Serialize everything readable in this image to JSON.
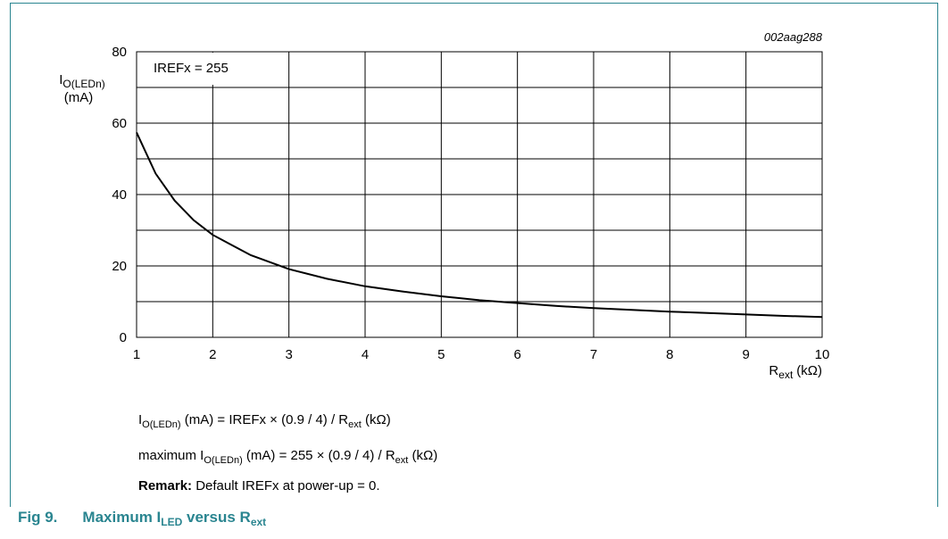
{
  "chart_data": {
    "type": "line",
    "figure_id": "002aag288",
    "annotation": "IREFx = 255",
    "ylabel_main": "I",
    "ylabel_sub": "O(LEDn)",
    "ylabel_unit": "(mA)",
    "xlabel_main": "R",
    "xlabel_sub": "ext",
    "xlabel_unit": "(kΩ)",
    "xlim": [
      1,
      10
    ],
    "ylim": [
      0,
      80
    ],
    "x_ticks": [
      "1",
      "2",
      "3",
      "4",
      "5",
      "6",
      "7",
      "8",
      "9",
      "10"
    ],
    "y_ticks": [
      "0",
      "20",
      "40",
      "60",
      "80"
    ],
    "grid": true,
    "series": [
      {
        "x": [
          1,
          1.25,
          1.5,
          1.75,
          2,
          2.5,
          3,
          3.5,
          4,
          4.5,
          5,
          5.5,
          6,
          6.5,
          7,
          7.5,
          8,
          8.5,
          9,
          9.5,
          10
        ],
        "y": [
          57.4,
          45.9,
          38.3,
          32.8,
          28.7,
          23.0,
          19.1,
          16.4,
          14.3,
          12.8,
          11.5,
          10.4,
          9.6,
          8.8,
          8.2,
          7.7,
          7.2,
          6.8,
          6.4,
          6.0,
          5.7
        ]
      }
    ]
  },
  "notes": {
    "formula1": {
      "a": "I",
      "b": "O(LEDn)",
      "c": " (mA) = IREFx × (0.9 / 4) / R",
      "d": "ext",
      "e": " (kΩ)"
    },
    "formula2": {
      "a": "maximum I",
      "b": "O(LEDn)",
      "c": " (mA) = 255 × (0.9 / 4) / R",
      "d": "ext",
      "e": " (kΩ)"
    },
    "remark_label": "Remark:",
    "remark_text": " Default IREFx at power-up = 0."
  },
  "figure": {
    "number": "Fig 9.",
    "title_a": "Maximum I",
    "title_b": "LED",
    "title_c": " versus R",
    "title_d": "ext"
  },
  "colors": {
    "accent": "#2a8590",
    "curve": "#000000",
    "grid": "#000000"
  }
}
